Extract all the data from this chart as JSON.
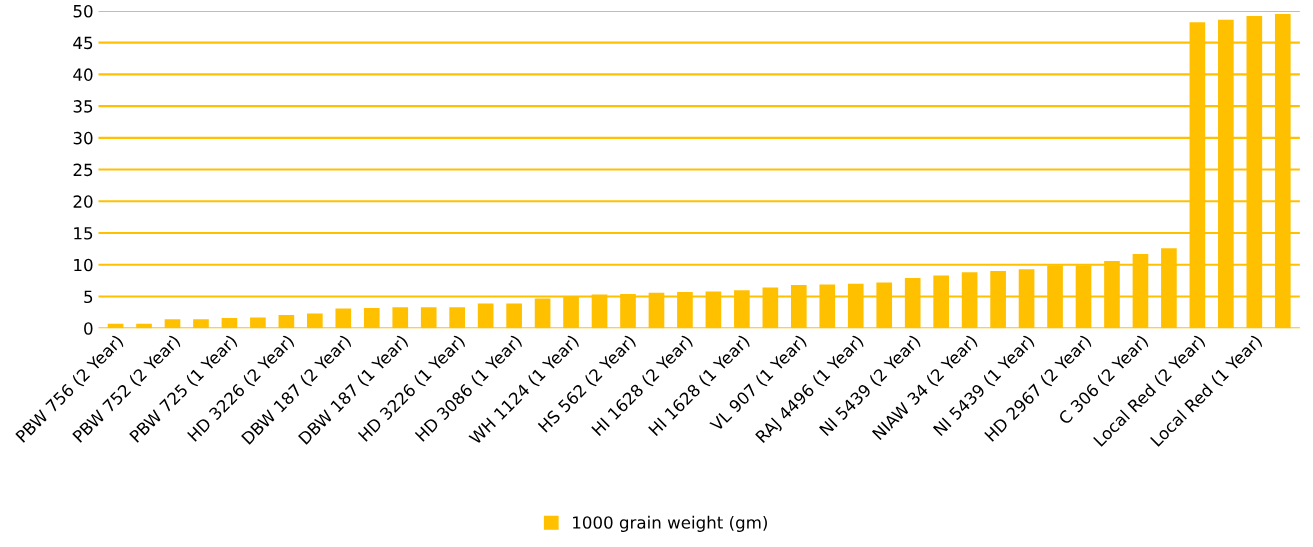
{
  "chart_data": {
    "type": "bar",
    "categories": [
      "PBW 756 (2 Year)",
      null,
      "PBW 752 (2 Year)",
      null,
      "PBW 725 (1 Year)",
      null,
      "HD 3226 (2 Year)",
      null,
      "DBW 187 (2 Year)",
      null,
      "DBW 187 (1 Year)",
      null,
      "HD 3226 (1 Year)",
      null,
      "HD 3086 (1 Year)",
      null,
      "WH 1124 (1 Year)",
      null,
      "HS 562 (2 Year)",
      null,
      "HI 1628 (2 Year)",
      null,
      "HI 1628 (1 Year)",
      null,
      "VL 907 (1 Year)",
      null,
      "RAJ 4496 (1 Year)",
      null,
      "NI 5439 (2 Year)",
      null,
      "NIAW 34 (2 Year)",
      null,
      "NI 5439 (1 Year)",
      null,
      "HD 2967 (2 Year)",
      null,
      "C 306 (2 Year)",
      null,
      "Local Red (2 Year)",
      null,
      "Local Red (1 Year)",
      null
    ],
    "series": [
      {
        "name": "1000 grain weight (gm)",
        "color": "#ffc000",
        "values": [
          0.7,
          0.7,
          1.4,
          1.4,
          1.6,
          1.7,
          2.1,
          2.3,
          3.1,
          3.2,
          3.3,
          3.3,
          3.3,
          3.9,
          3.9,
          4.7,
          5.0,
          5.3,
          5.4,
          5.6,
          5.7,
          5.8,
          6.0,
          6.4,
          6.8,
          6.9,
          7.0,
          7.2,
          7.9,
          8.3,
          8.8,
          9.0,
          9.3,
          9.9,
          9.9,
          10.6,
          11.7,
          12.6,
          48.2,
          48.6,
          49.2,
          49.5
        ]
      }
    ],
    "ylim": [
      0,
      50
    ],
    "yticks": [
      0,
      5,
      10,
      15,
      20,
      25,
      30,
      35,
      40,
      45,
      50
    ],
    "grid": "y",
    "legend": "bottom"
  }
}
